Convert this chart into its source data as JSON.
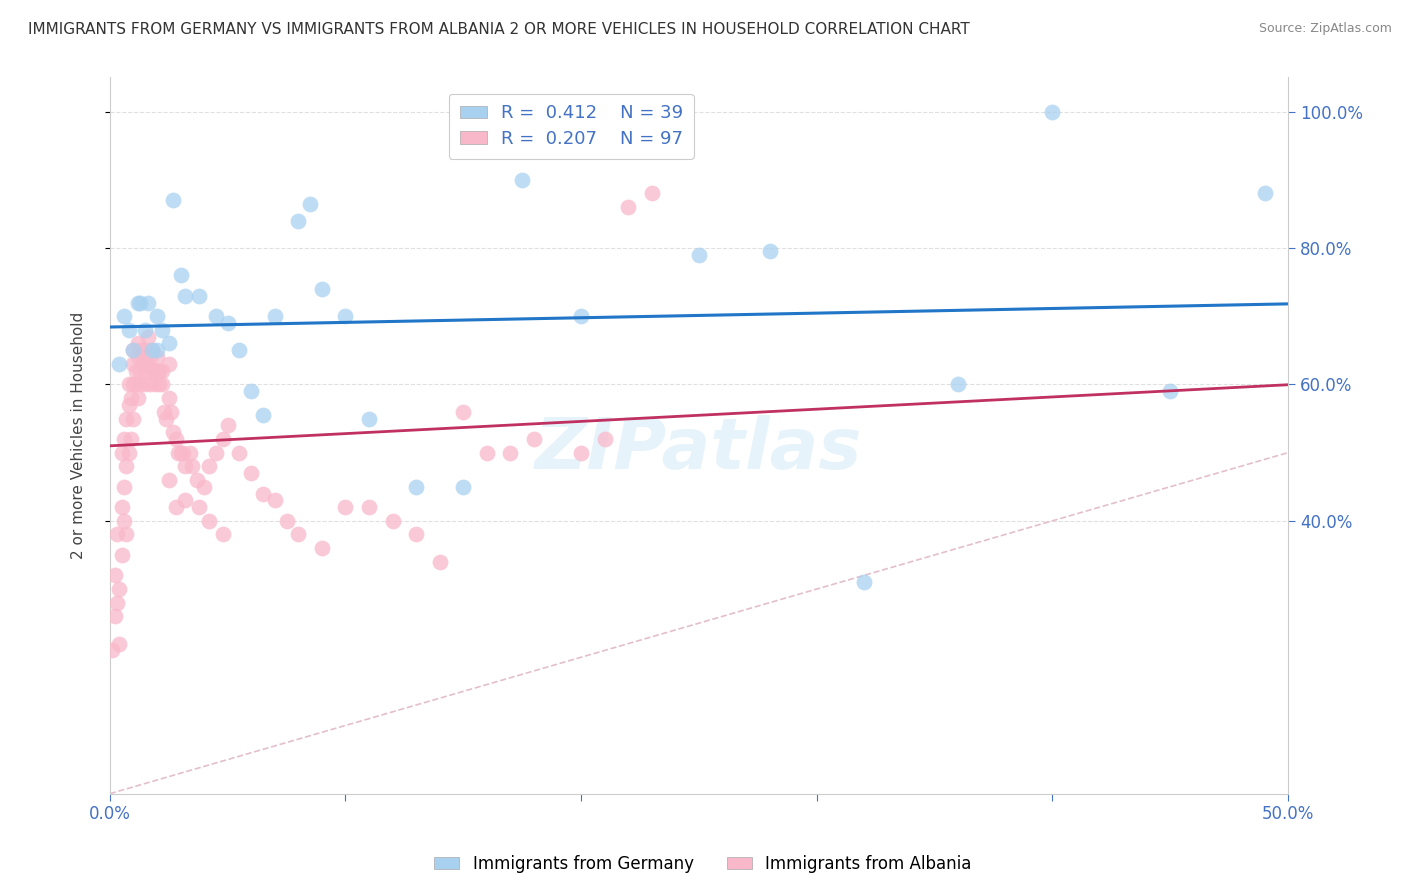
{
  "title": "IMMIGRANTS FROM GERMANY VS IMMIGRANTS FROM ALBANIA 2 OR MORE VEHICLES IN HOUSEHOLD CORRELATION CHART",
  "source": "Source: ZipAtlas.com",
  "ylabel": "2 or more Vehicles in Household",
  "x_min": 0.0,
  "x_max": 0.5,
  "y_min": 0.0,
  "y_max": 1.05,
  "x_ticks": [
    0.0,
    0.1,
    0.2,
    0.3,
    0.4,
    0.5
  ],
  "x_tick_labels": [
    "0.0%",
    "",
    "",
    "",
    "",
    "50.0%"
  ],
  "y_ticks": [
    0.4,
    0.6,
    0.8,
    1.0
  ],
  "y_tick_labels": [
    "40.0%",
    "60.0%",
    "80.0%",
    "100.0%"
  ],
  "germany_R": 0.412,
  "germany_N": 39,
  "albania_R": 0.207,
  "albania_N": 97,
  "germany_color": "#a8d1f0",
  "albania_color": "#f9b8ca",
  "germany_line_color": "#2176c7",
  "albania_line_color": "#c03060",
  "diag_line_color": "#e0b8c8",
  "background_color": "#ffffff",
  "grid_color": "#e0e0e0",
  "axis_color": "#cccccc",
  "tick_label_color": "#4472c4",
  "legend_label_germany": "Immigrants from Germany",
  "legend_label_albania": "Immigrants from Albania",
  "germany_x": [
    0.004,
    0.006,
    0.008,
    0.01,
    0.012,
    0.013,
    0.015,
    0.016,
    0.018,
    0.02,
    0.02,
    0.022,
    0.025,
    0.027,
    0.03,
    0.032,
    0.038,
    0.045,
    0.05,
    0.055,
    0.06,
    0.065,
    0.07,
    0.08,
    0.085,
    0.09,
    0.1,
    0.11,
    0.13,
    0.15,
    0.175,
    0.2,
    0.25,
    0.28,
    0.32,
    0.36,
    0.4,
    0.45,
    0.49
  ],
  "germany_y": [
    0.63,
    0.7,
    0.68,
    0.65,
    0.72,
    0.72,
    0.68,
    0.72,
    0.65,
    0.7,
    0.65,
    0.68,
    0.66,
    0.87,
    0.76,
    0.73,
    0.73,
    0.7,
    0.69,
    0.65,
    0.59,
    0.555,
    0.7,
    0.84,
    0.865,
    0.74,
    0.7,
    0.55,
    0.45,
    0.45,
    0.9,
    0.7,
    0.79,
    0.795,
    0.31,
    0.6,
    1.0,
    0.59,
    0.88
  ],
  "albania_x": [
    0.001,
    0.002,
    0.002,
    0.003,
    0.003,
    0.004,
    0.004,
    0.005,
    0.005,
    0.005,
    0.006,
    0.006,
    0.006,
    0.007,
    0.007,
    0.007,
    0.008,
    0.008,
    0.008,
    0.009,
    0.009,
    0.01,
    0.01,
    0.01,
    0.01,
    0.011,
    0.011,
    0.012,
    0.012,
    0.012,
    0.013,
    0.013,
    0.013,
    0.014,
    0.014,
    0.015,
    0.015,
    0.015,
    0.016,
    0.016,
    0.017,
    0.017,
    0.018,
    0.018,
    0.019,
    0.019,
    0.02,
    0.02,
    0.021,
    0.021,
    0.022,
    0.022,
    0.023,
    0.024,
    0.025,
    0.025,
    0.026,
    0.027,
    0.028,
    0.029,
    0.03,
    0.031,
    0.032,
    0.034,
    0.035,
    0.037,
    0.04,
    0.042,
    0.045,
    0.048,
    0.05,
    0.055,
    0.06,
    0.065,
    0.07,
    0.075,
    0.08,
    0.09,
    0.1,
    0.11,
    0.12,
    0.13,
    0.14,
    0.15,
    0.16,
    0.17,
    0.18,
    0.2,
    0.21,
    0.22,
    0.23,
    0.025,
    0.028,
    0.032,
    0.038,
    0.042,
    0.048
  ],
  "albania_y": [
    0.21,
    0.26,
    0.32,
    0.28,
    0.38,
    0.3,
    0.22,
    0.35,
    0.42,
    0.5,
    0.4,
    0.45,
    0.52,
    0.38,
    0.48,
    0.55,
    0.5,
    0.57,
    0.6,
    0.52,
    0.58,
    0.6,
    0.63,
    0.55,
    0.65,
    0.6,
    0.62,
    0.58,
    0.64,
    0.66,
    0.62,
    0.6,
    0.65,
    0.64,
    0.63,
    0.62,
    0.65,
    0.6,
    0.63,
    0.67,
    0.64,
    0.6,
    0.62,
    0.65,
    0.62,
    0.6,
    0.62,
    0.64,
    0.6,
    0.62,
    0.6,
    0.62,
    0.56,
    0.55,
    0.63,
    0.58,
    0.56,
    0.53,
    0.52,
    0.5,
    0.5,
    0.5,
    0.48,
    0.5,
    0.48,
    0.46,
    0.45,
    0.48,
    0.5,
    0.52,
    0.54,
    0.5,
    0.47,
    0.44,
    0.43,
    0.4,
    0.38,
    0.36,
    0.42,
    0.42,
    0.4,
    0.38,
    0.34,
    0.56,
    0.5,
    0.5,
    0.52,
    0.5,
    0.52,
    0.86,
    0.88,
    0.46,
    0.42,
    0.43,
    0.42,
    0.4,
    0.38
  ]
}
